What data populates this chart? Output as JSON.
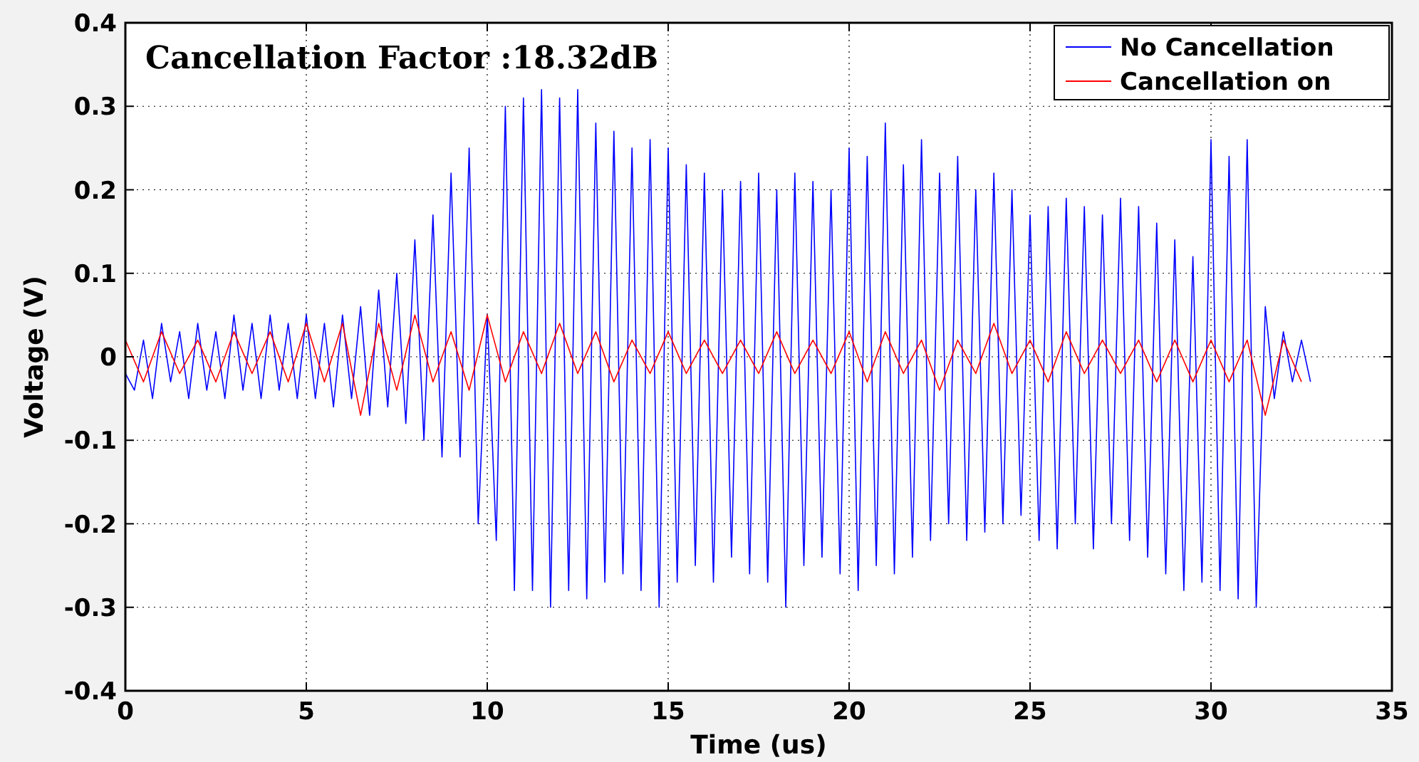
{
  "chart_data": {
    "type": "line",
    "xlabel": "Time (us)",
    "ylabel": "Voltage (V)",
    "annotations": [
      "Cancellation Factor :18.32dB"
    ],
    "xlim": [
      0,
      35
    ],
    "xticks": [
      0,
      5,
      10,
      15,
      20,
      25,
      30,
      35
    ],
    "ylim": [
      -0.4,
      0.4
    ],
    "yticks": [
      -0.4,
      -0.3,
      -0.2,
      -0.1,
      0,
      0.1,
      0.2,
      0.3,
      0.4
    ],
    "grid": true,
    "legend": "top right",
    "line_style": "solid",
    "marker": "none",
    "series": [
      {
        "name": "No Cancellation",
        "color": "#0000ff",
        "x": [
          0,
          0.25,
          0.5,
          0.75,
          1,
          1.25,
          1.5,
          1.75,
          2,
          2.25,
          2.5,
          2.75,
          3,
          3.25,
          3.5,
          3.75,
          4,
          4.25,
          4.5,
          4.75,
          5,
          5.25,
          5.5,
          5.75,
          6,
          6.25,
          6.5,
          6.75,
          7,
          7.25,
          7.5,
          7.75,
          8,
          8.25,
          8.5,
          8.75,
          9,
          9.25,
          9.5,
          9.75,
          10,
          10.25,
          10.5,
          10.75,
          11,
          11.25,
          11.5,
          11.75,
          12,
          12.25,
          12.5,
          12.75,
          13,
          13.25,
          13.5,
          13.75,
          14,
          14.25,
          14.5,
          14.75,
          15,
          15.25,
          15.5,
          15.75,
          16,
          16.25,
          16.5,
          16.75,
          17,
          17.25,
          17.5,
          17.75,
          18,
          18.25,
          18.5,
          18.75,
          19,
          19.25,
          19.5,
          19.75,
          20,
          20.25,
          20.5,
          20.75,
          21,
          21.25,
          21.5,
          21.75,
          22,
          22.25,
          22.5,
          22.75,
          23,
          23.25,
          23.5,
          23.75,
          24,
          24.25,
          24.5,
          24.75,
          25,
          25.25,
          25.5,
          25.75,
          26,
          26.25,
          26.5,
          26.75,
          27,
          27.25,
          27.5,
          27.75,
          28,
          28.25,
          28.5,
          28.75,
          29,
          29.25,
          29.5,
          29.75,
          30,
          30.25,
          30.5,
          30.75,
          31,
          31.25,
          31.5,
          31.75,
          32,
          32.25,
          32.5,
          32.75
        ],
        "values": [
          -0.02,
          -0.04,
          0.02,
          -0.05,
          0.04,
          -0.03,
          0.03,
          -0.05,
          0.04,
          -0.04,
          0.03,
          -0.05,
          0.05,
          -0.04,
          0.04,
          -0.05,
          0.05,
          -0.04,
          0.04,
          -0.05,
          0.05,
          -0.05,
          0.04,
          -0.06,
          0.05,
          -0.05,
          0.06,
          -0.07,
          0.08,
          -0.06,
          0.1,
          -0.08,
          0.14,
          -0.1,
          0.17,
          -0.12,
          0.22,
          -0.12,
          0.25,
          -0.2,
          0.05,
          -0.22,
          0.3,
          -0.28,
          0.31,
          -0.28,
          0.32,
          -0.3,
          0.31,
          -0.28,
          0.32,
          -0.29,
          0.28,
          -0.27,
          0.27,
          -0.26,
          0.25,
          -0.28,
          0.26,
          -0.3,
          0.25,
          -0.27,
          0.23,
          -0.25,
          0.22,
          -0.27,
          0.2,
          -0.24,
          0.21,
          -0.26,
          0.22,
          -0.27,
          0.2,
          -0.3,
          0.22,
          -0.25,
          0.21,
          -0.24,
          0.2,
          -0.26,
          0.25,
          -0.28,
          0.24,
          -0.25,
          0.28,
          -0.26,
          0.23,
          -0.24,
          0.26,
          -0.22,
          0.22,
          -0.2,
          0.24,
          -0.22,
          0.2,
          -0.21,
          0.22,
          -0.2,
          0.2,
          -0.19,
          0.17,
          -0.22,
          0.18,
          -0.23,
          0.19,
          -0.2,
          0.18,
          -0.23,
          0.17,
          -0.2,
          0.19,
          -0.22,
          0.18,
          -0.24,
          0.16,
          -0.26,
          0.14,
          -0.28,
          0.12,
          -0.27,
          0.26,
          -0.28,
          0.24,
          -0.29,
          0.26,
          -0.3,
          0.06,
          -0.05,
          0.03,
          -0.03,
          0.02,
          -0.03
        ]
      },
      {
        "name": "Cancellation on",
        "color": "#ff0000",
        "x": [
          0,
          0.5,
          1,
          1.5,
          2,
          2.5,
          3,
          3.5,
          4,
          4.5,
          5,
          5.5,
          6,
          6.5,
          7,
          7.5,
          8,
          8.5,
          9,
          9.5,
          10,
          10.5,
          11,
          11.5,
          12,
          12.5,
          13,
          13.5,
          14,
          14.5,
          15,
          15.5,
          16,
          16.5,
          17,
          17.5,
          18,
          18.5,
          19,
          19.5,
          20,
          20.5,
          21,
          21.5,
          22,
          22.5,
          23,
          23.5,
          24,
          24.5,
          25,
          25.5,
          26,
          26.5,
          27,
          27.5,
          28,
          28.5,
          29,
          29.5,
          30,
          30.5,
          31,
          31.5,
          32,
          32.5
        ],
        "values": [
          0.02,
          -0.03,
          0.03,
          -0.02,
          0.02,
          -0.03,
          0.03,
          -0.02,
          0.03,
          -0.03,
          0.04,
          -0.03,
          0.04,
          -0.07,
          0.04,
          -0.04,
          0.05,
          -0.03,
          0.03,
          -0.04,
          0.05,
          -0.03,
          0.03,
          -0.02,
          0.04,
          -0.02,
          0.03,
          -0.03,
          0.02,
          -0.02,
          0.03,
          -0.02,
          0.02,
          -0.02,
          0.02,
          -0.02,
          0.03,
          -0.02,
          0.02,
          -0.02,
          0.03,
          -0.03,
          0.03,
          -0.02,
          0.02,
          -0.04,
          0.02,
          -0.02,
          0.04,
          -0.02,
          0.02,
          -0.03,
          0.03,
          -0.02,
          0.02,
          -0.02,
          0.02,
          -0.03,
          0.02,
          -0.03,
          0.02,
          -0.03,
          0.02,
          -0.07,
          0.02,
          -0.03
        ]
      }
    ]
  }
}
